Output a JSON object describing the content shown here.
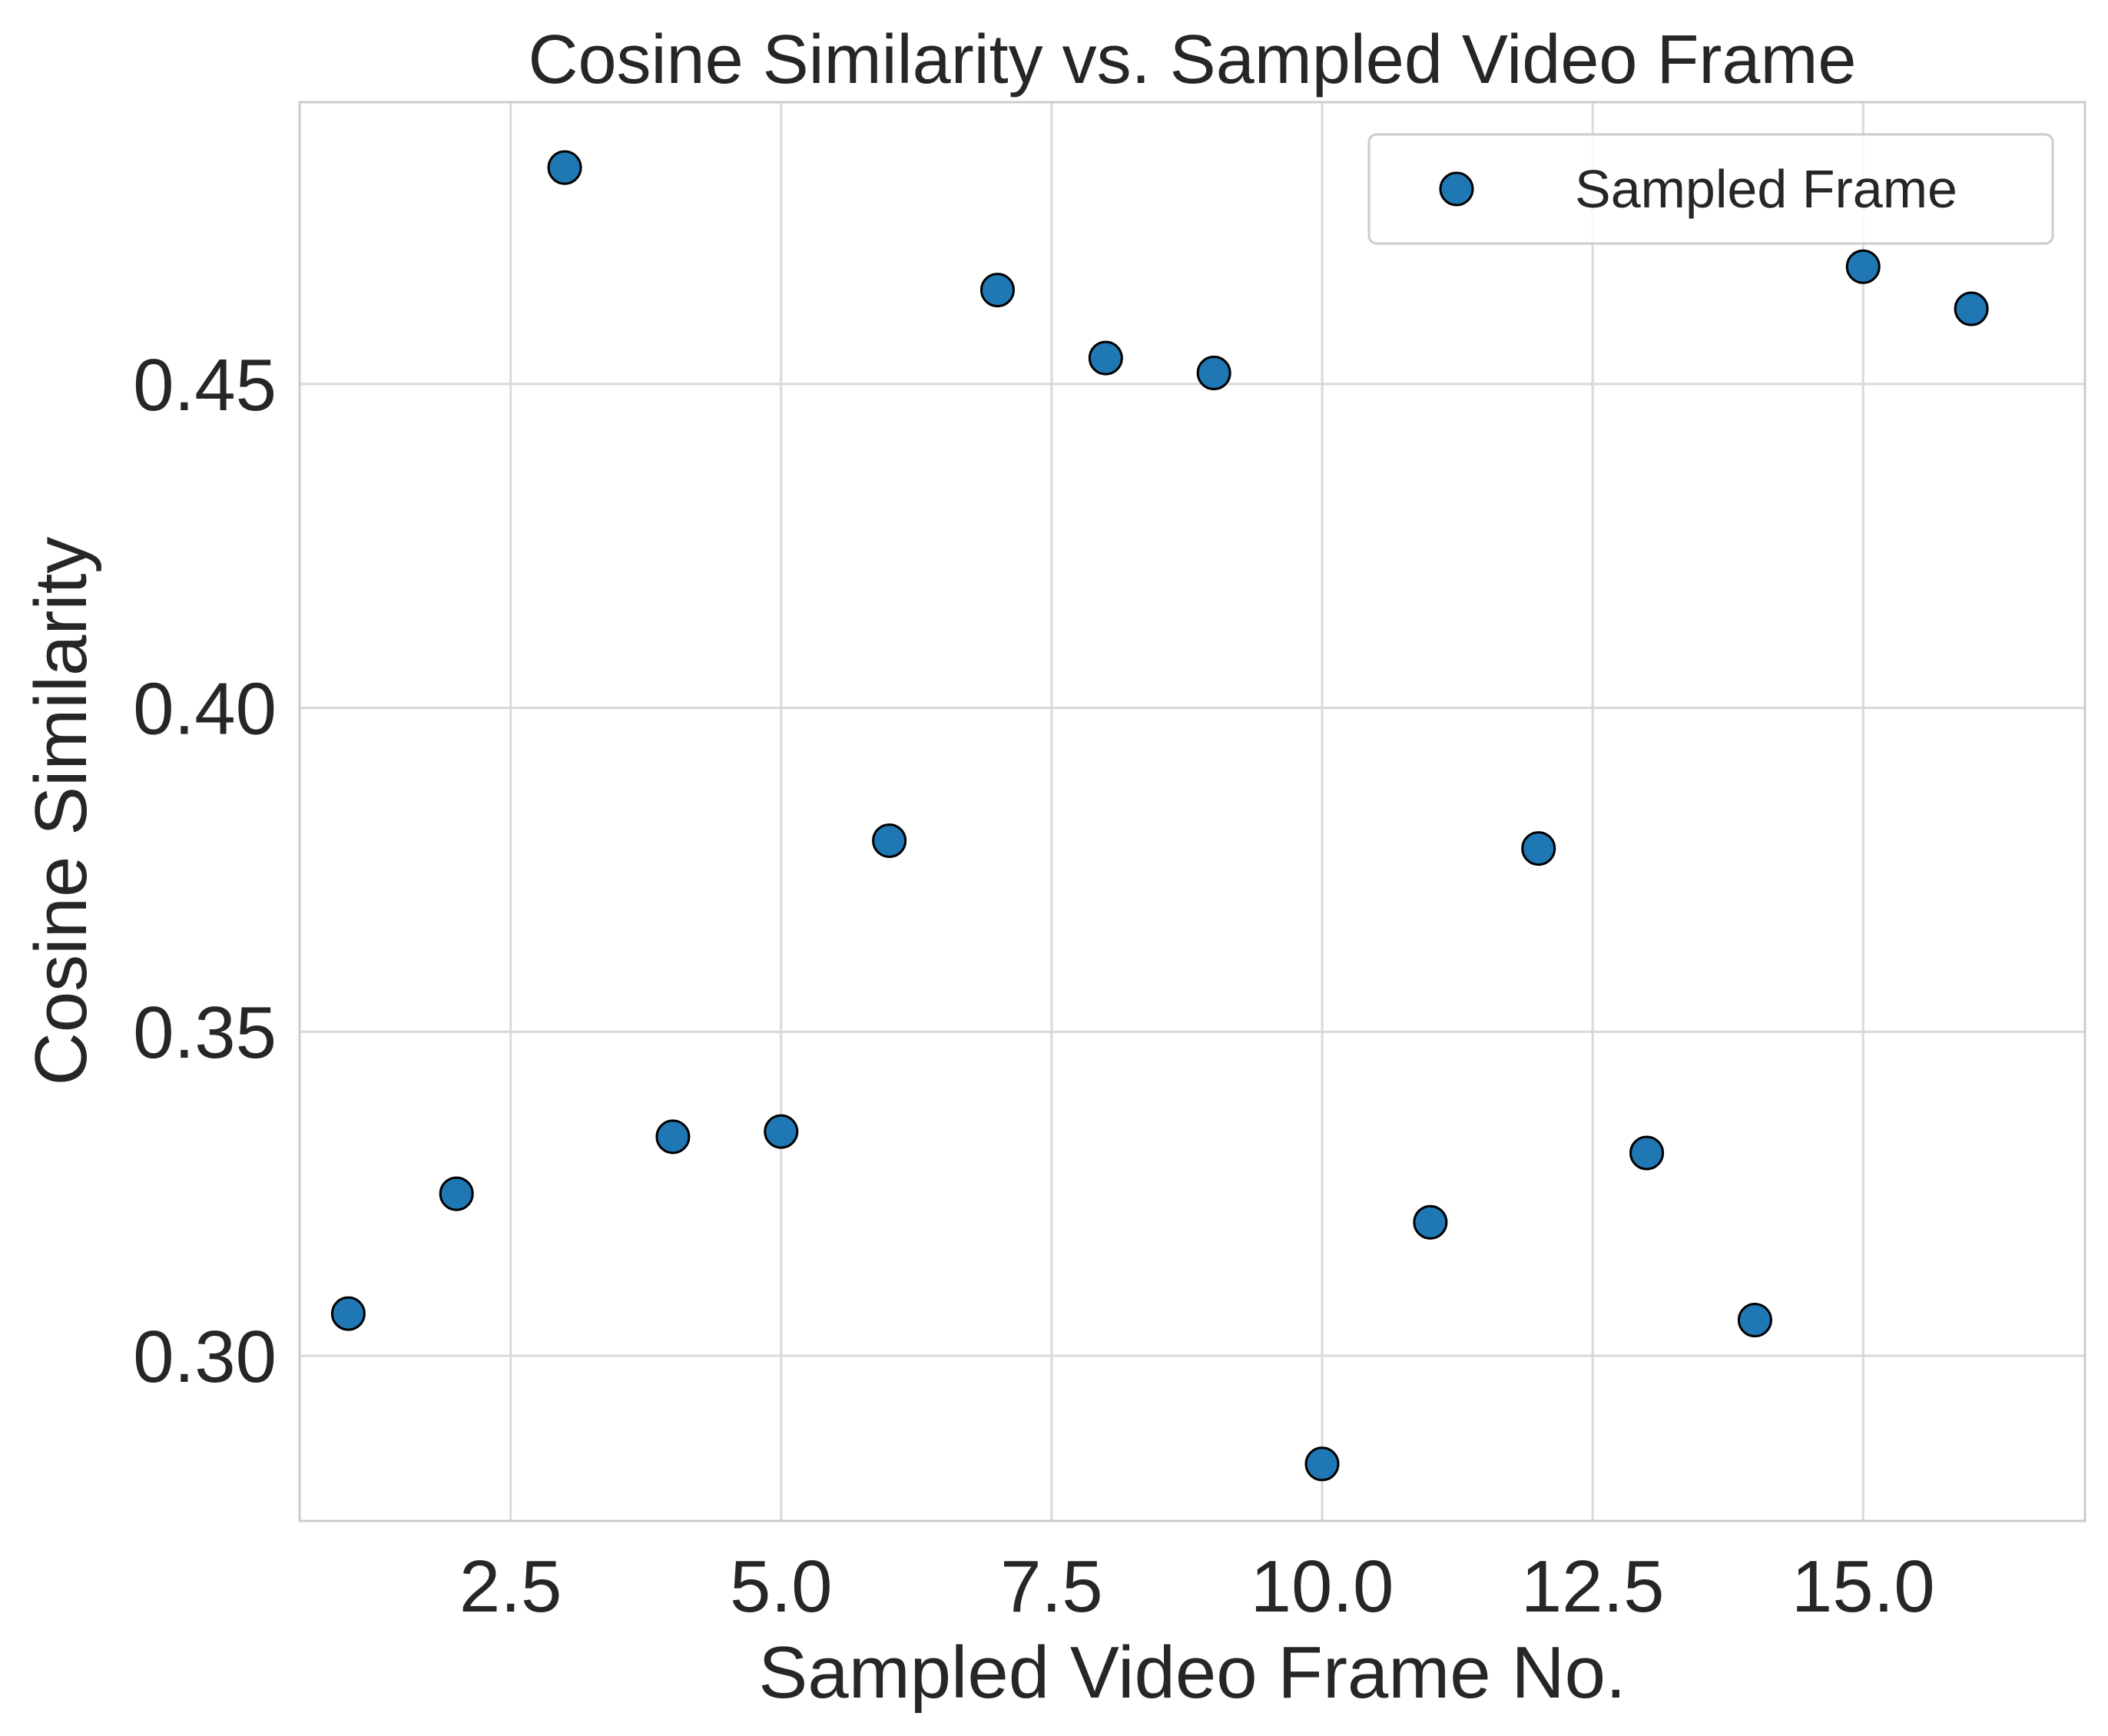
{
  "chart_data": {
    "type": "scatter",
    "title": "Cosine Similarity vs. Sampled Video Frame",
    "xlabel": "Sampled Video Frame No.",
    "ylabel": "Cosine Similarity",
    "xlim": [
      0.55,
      17.05
    ],
    "ylim": [
      0.2745,
      0.4935
    ],
    "xticks": [
      2.5,
      5.0,
      7.5,
      10.0,
      12.5,
      15.0
    ],
    "xtick_labels": [
      "2.5",
      "5.0",
      "7.5",
      "10.0",
      "12.5",
      "15.0"
    ],
    "yticks": [
      0.3,
      0.35,
      0.4,
      0.45
    ],
    "ytick_labels": [
      "0.30",
      "0.35",
      "0.40",
      "0.45"
    ],
    "grid": true,
    "legend_position": "top-right",
    "color": "#1f77b4",
    "series": [
      {
        "name": "Sampled Frame",
        "x": [
          1,
          2,
          3,
          4,
          5,
          6,
          7,
          8,
          9,
          10,
          11,
          12,
          13,
          14,
          15,
          16
        ],
        "y": [
          0.3065,
          0.325,
          0.4834,
          0.3338,
          0.3346,
          0.3795,
          0.4645,
          0.454,
          0.4517,
          0.2833,
          0.3206,
          0.3783,
          0.3313,
          0.3055,
          0.4681,
          0.4616
        ]
      }
    ]
  }
}
